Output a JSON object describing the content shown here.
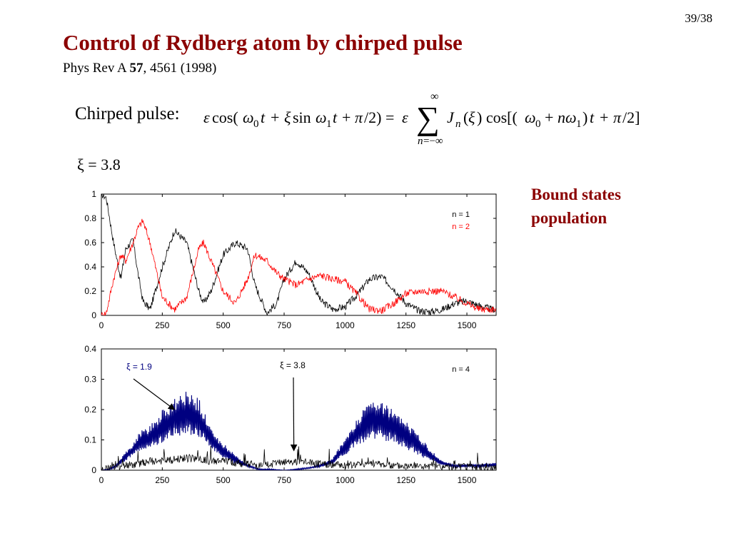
{
  "slide": {
    "page_number": "39/38",
    "title": "Control of Rydberg atom by chirped pulse",
    "citation": {
      "journal": "Phys Rev A",
      "volume": "57",
      "rest": ", 4561 (1998)"
    },
    "formula_label": "Chirped pulse:",
    "xi_label": "ξ = 3.8",
    "side_label": [
      "Bound states",
      "population"
    ]
  },
  "chart_data": [
    {
      "type": "line",
      "xlim": [
        0,
        1620
      ],
      "ylim": [
        0,
        1
      ],
      "x_ticks": [
        "0",
        "250",
        "500",
        "750",
        "1000",
        "1250",
        "1500"
      ],
      "y_ticks": [
        "0",
        "0.2",
        "0.4",
        "0.6",
        "0.8",
        "1"
      ],
      "legend": {
        "placement": "top-right",
        "entries": [
          "n = 1",
          "n = 2"
        ]
      },
      "series": [
        {
          "name": "n = 1",
          "color": "#000000",
          "x": [
            0,
            20,
            50,
            80,
            100,
            130,
            150,
            170,
            200,
            250,
            300,
            350,
            400,
            420,
            450,
            500,
            550,
            600,
            630,
            680,
            720,
            750,
            800,
            850,
            900,
            950,
            1000,
            1050,
            1100,
            1150,
            1200,
            1250,
            1300,
            1350,
            1400,
            1450,
            1500,
            1550,
            1600
          ],
          "y": [
            1.0,
            0.97,
            0.6,
            0.3,
            0.55,
            0.62,
            0.35,
            0.12,
            0.05,
            0.4,
            0.7,
            0.6,
            0.2,
            0.1,
            0.2,
            0.5,
            0.6,
            0.55,
            0.25,
            0.02,
            0.1,
            0.3,
            0.45,
            0.35,
            0.12,
            0.05,
            0.07,
            0.17,
            0.3,
            0.32,
            0.22,
            0.1,
            0.04,
            0.03,
            0.05,
            0.1,
            0.12,
            0.08,
            0.05
          ]
        },
        {
          "name": "n = 2",
          "color": "#ff0000",
          "x": [
            0,
            20,
            50,
            80,
            100,
            130,
            150,
            170,
            200,
            250,
            300,
            350,
            400,
            420,
            450,
            500,
            550,
            600,
            630,
            680,
            720,
            750,
            800,
            850,
            900,
            950,
            1000,
            1050,
            1100,
            1150,
            1200,
            1250,
            1300,
            1350,
            1400,
            1450,
            1500,
            1550,
            1600
          ],
          "y": [
            0.0,
            0.02,
            0.3,
            0.5,
            0.45,
            0.6,
            0.72,
            0.78,
            0.6,
            0.15,
            0.05,
            0.15,
            0.55,
            0.6,
            0.45,
            0.2,
            0.1,
            0.3,
            0.5,
            0.45,
            0.35,
            0.3,
            0.25,
            0.3,
            0.33,
            0.3,
            0.28,
            0.17,
            0.05,
            0.04,
            0.1,
            0.18,
            0.2,
            0.2,
            0.2,
            0.15,
            0.1,
            0.05,
            0.05
          ]
        }
      ]
    },
    {
      "type": "line",
      "xlim": [
        0,
        1620
      ],
      "ylim": [
        0,
        0.4
      ],
      "x_ticks": [
        "0",
        "250",
        "500",
        "750",
        "1000",
        "1250",
        "1500"
      ],
      "y_ticks": [
        "0",
        "0.1",
        "0.2",
        "0.3",
        "0.4"
      ],
      "legend": {
        "placement": "top-right",
        "entries": [
          "n = 4"
        ]
      },
      "annotations": [
        {
          "text": "ξ = 1.9",
          "color": "#000080",
          "arrow_to": [
            300,
            0.2
          ]
        },
        {
          "text": "ξ = 3.8",
          "color": "#000000",
          "arrow_to": [
            790,
            0.065
          ]
        }
      ],
      "series": [
        {
          "name": "ξ = 1.9",
          "color": "#000080",
          "band": true,
          "x": [
            0,
            30,
            60,
            100,
            130,
            160,
            200,
            250,
            300,
            350,
            400,
            450,
            500,
            550,
            600,
            650,
            700,
            750,
            800,
            850,
            900,
            950,
            1000,
            1050,
            1100,
            1150,
            1200,
            1250,
            1300,
            1350,
            1400,
            1450,
            1500,
            1550,
            1600
          ],
          "y_upper": [
            0.0,
            0.005,
            0.02,
            0.06,
            0.09,
            0.13,
            0.15,
            0.2,
            0.24,
            0.26,
            0.24,
            0.14,
            0.09,
            0.05,
            0.02,
            0.005,
            0.005,
            0.0,
            0.005,
            0.01,
            0.02,
            0.04,
            0.11,
            0.18,
            0.22,
            0.23,
            0.21,
            0.16,
            0.12,
            0.07,
            0.03,
            0.02,
            0.02,
            0.02,
            0.025
          ],
          "y_lower": [
            0.0,
            0.0,
            0.01,
            0.03,
            0.05,
            0.06,
            0.07,
            0.09,
            0.11,
            0.12,
            0.11,
            0.07,
            0.04,
            0.02,
            0.01,
            0.0,
            0.0,
            0.0,
            0.0,
            0.005,
            0.01,
            0.02,
            0.05,
            0.08,
            0.1,
            0.1,
            0.09,
            0.07,
            0.05,
            0.03,
            0.015,
            0.01,
            0.01,
            0.01,
            0.01
          ]
        },
        {
          "name": "ξ = 3.8",
          "color": "#000000",
          "x": [
            0,
            50,
            100,
            150,
            200,
            250,
            300,
            350,
            400,
            450,
            500,
            550,
            600,
            650,
            700,
            750,
            800,
            850,
            900,
            950,
            1000,
            1050,
            1100,
            1150,
            1200,
            1250,
            1300,
            1350,
            1400,
            1450,
            1500,
            1550,
            1600
          ],
          "y": [
            0.0,
            0.01,
            0.015,
            0.02,
            0.03,
            0.03,
            0.035,
            0.04,
            0.035,
            0.03,
            0.03,
            0.025,
            0.02,
            0.015,
            0.02,
            0.025,
            0.03,
            0.025,
            0.02,
            0.02,
            0.015,
            0.02,
            0.025,
            0.02,
            0.015,
            0.015,
            0.015,
            0.01,
            0.01,
            0.01,
            0.01,
            0.01,
            0.01
          ]
        }
      ]
    }
  ]
}
